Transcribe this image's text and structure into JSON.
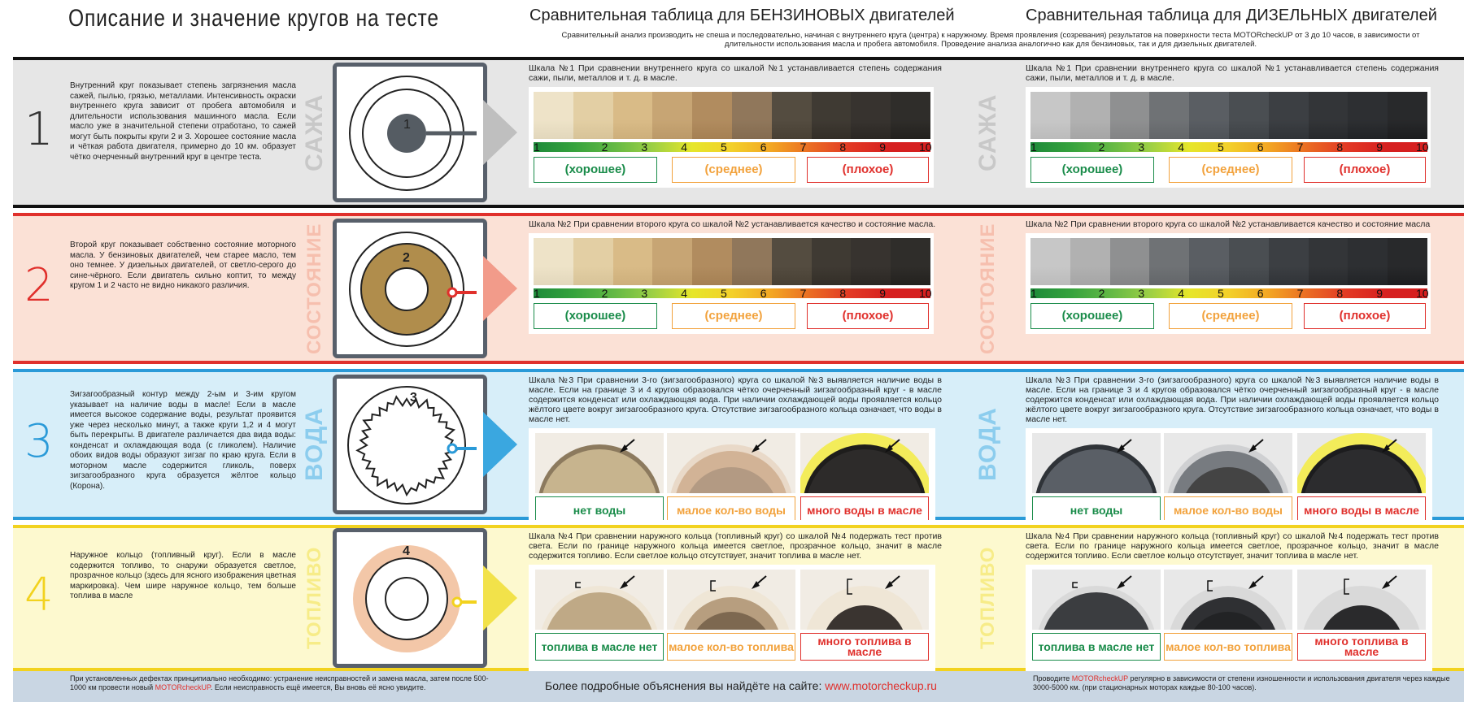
{
  "title": "Описание и значение кругов на тесте",
  "gas_title": "Сравнительная таблица для  БЕНЗИНОВЫХ двигателей",
  "diesel_title": "Сравнительная таблица для  ДИЗЕЛЬНЫХ двигателей",
  "intro": "Сравнительный анализ производить не спеша и последовательно, начиная с внутреннего круга (центра) к наружному. Время проявления (созревания) результатов на поверхности теста MOTORcheckUP от 3 до 10 часов, в зависимости от длительности использования масла и пробега автомобиля. Проведение анализа аналогично как для бензиновых, так и для дизельных двигателей.",
  "scale_numbers": [
    "1",
    "2",
    "3",
    "4",
    "5",
    "6",
    "7",
    "8",
    "9",
    "10"
  ],
  "cat_good": "(хорошее)",
  "cat_mid": "(среднее)",
  "cat_bad": "(плохое)",
  "rows": [
    {
      "num": "1",
      "label": "САЖА",
      "color": "#bfbfbf",
      "numcolor": "#333333",
      "bg": "#e6e6e6",
      "labelcolor": "#c8c8c8",
      "desc": "Внутренний круг показывает степень загрязнения масла сажей, пылью, грязью, металлами. Интенсивность окраски внутреннего круга зависит от пробега автомобиля и длительности использования машинного масла. Если масло уже в значительной степени отработано, то сажей могут быть покрыты круги 2 и 3. Хорошее состояние масла и чёткая работа двигателя, примерно до 10 км. образует чётко очерченный внутренний круг в центре теста.",
      "circle": "1",
      "gas_text": "Шкала №1 При сравнении внутреннего круга со шкалой №1 устанавливается степень содержания сажи, пыли, металлов и т. д. в масле.",
      "diesel_text": "Шкала №1 При сравнении внутреннего круга со шкалой №1 устанавливается степень содержания сажи, пыли, металлов и т. д. в масле."
    },
    {
      "num": "2",
      "label": "СОСТОЯНИЕ",
      "color": "#f29b8a",
      "numcolor": "#e0302c",
      "bg": "#fbe1d6",
      "labelcolor": "#f6bfae",
      "desc": "Второй круг показывает собственно состояние моторного масла. У бензиновых двигателей, чем старее масло, тем оно темнее. У дизельных двигателей, от светло-серого до сине-чёрного. Если двигатель сильно коптит, то между кругом 1 и 2 часто не видно никакого различия.",
      "circle": "2",
      "gas_text": "Шкала №2 При сравнении второго круга со шкалой №2 устанавливается качество и состояние масла.",
      "diesel_text": "Шкала №2 При сравнении второго круга со шкалой №2 устанавливается качество и состояние масла"
    },
    {
      "num": "3",
      "label": "ВОДА",
      "color": "#3aa7e0",
      "numcolor": "#2a9ad8",
      "bg": "#d7eef9",
      "labelcolor": "#8ccdee",
      "desc": "Зигзагообразный контур между 2-ым и 3-им кругом указывает на наличие воды в масле! Если в масле имеется высокое содержание воды, результат проявится уже через несколько минут, а также круги 1,2 и 4 могут быть перекрыты. В двигателе различается два вида воды: конденсат и охлаждающая вода (с гликолем). Наличие обоих видов воды образуют зигзаг по краю круга. Если в моторном масле содержится гликоль, поверх зигзагообразного круга образуется жёлтое кольцо (Корона).",
      "circle": "3",
      "gas_text": "Шкала №3 При сравнении 3-го (зигзагообразного) круга со шкалой №3 выявляется наличие воды в масле. Если на границе 3 и 4 кругов образовался чётко очерченный зигзагообразный круг - в масле содержится конденсат или охлаждающая вода. При наличии охлаждающей воды проявляется кольцо жёлтого цвете вокруг зигзагообразного круга. Отсутствие зигзагообразного кольца означает, что воды в масле нет.",
      "diesel_text": "Шкала №3 При сравнении 3-го (зигзагообразного) круга со шкалой №3 выявляется наличие воды в масле. Если на границе 3 и 4 кругов образовался чётко очерченный зигзагообразный круг - в масле содержится конденсат или охлаждающая вода. При наличии охлаждающей воды проявляется кольцо жёлтого цвете вокруг зигзагообразного круга. Отсутствие зигзагообразного кольца означает, что воды в масле нет.",
      "c1": "нет воды",
      "c2": "малое кол-во воды",
      "c3": "много воды в масле"
    },
    {
      "num": "4",
      "label": "ТОПЛИВО",
      "color": "#f2e24a",
      "numcolor": "#f2d21e",
      "bg": "#fdf9cf",
      "labelcolor": "#f7ec88",
      "desc": "Наружное кольцо (топливный круг). Если в масле содержится топливо, то снаружи образуется светлое, прозрачное кольцо (здесь для ясного изображения цветная маркировка). Чем шире наружное кольцо, тем больше топлива в масле",
      "circle": "4",
      "gas_text": "Шкала №4  При сравнении наружного кольца (топливный круг) со шкалой №4 подержать тест против света. Если по границе наружного кольца имеется светлое, прозрачное кольцо, значит в масле содержится топливо. Если светлое кольцо отсутствует, значит топлива в масле нет.",
      "diesel_text": "Шкала №4  При сравнении наружного кольца (топливный круг) со шкалой №4 подержать тест против света. Если по границе наружного кольца имеется светлое, прозрачное кольцо, значит в масле содержится топливо. Если светлое кольцо отсутствует, значит топлива в масле нет.",
      "c1": "топлива в масле нет",
      "c2": "малое кол-во топлива",
      "c3": "много топлива в масле"
    }
  ],
  "footer_left_a": "При установленных дефектах принципиально необходимо: устранение неисправностей и замена масла, затем после 500-1000 км провести новый ",
  "footer_brand": "MOTORcheckUP",
  "footer_left_b": ". Если неисправность ещё имеется, Вы вновь её ясно увидите.",
  "footer_center": "Более подробные объяснения вы найдёте на сайте: ",
  "footer_url": "www.motorcheckup.ru",
  "footer_right_a": "Проводите ",
  "footer_right_b": " регулярно в зависимости от степени изношенности и использования двигателя через каждые 3000-5000 км. (при стационарных моторах каждые 80-100 часов).",
  "colors": {
    "good": "#1a8c4a",
    "mid": "#f2a23c",
    "bad": "#e0302c"
  }
}
